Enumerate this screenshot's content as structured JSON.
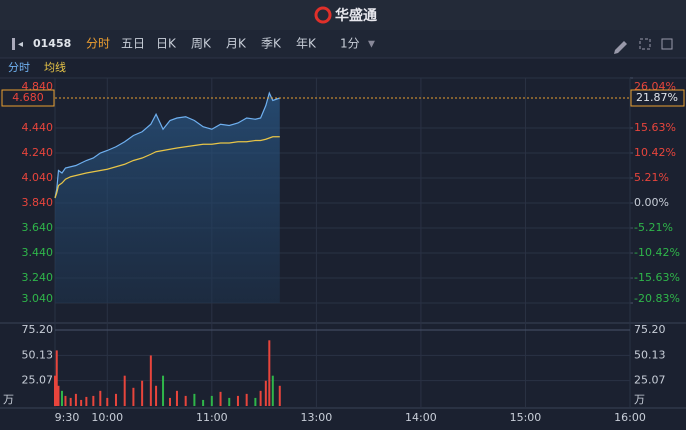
{
  "ui": {
    "brand": "华盛通",
    "symbol": "01458",
    "tabs": [
      "分时",
      "五日",
      "日K",
      "周K",
      "月K",
      "季K",
      "年K"
    ],
    "interval": "1分",
    "volume_unit": "万"
  },
  "chart_data": [
    {
      "type": "line",
      "x": [
        0,
        1,
        2,
        4,
        6,
        9,
        12,
        15,
        18,
        22,
        26,
        30,
        35,
        40,
        45,
        50,
        55,
        58,
        62,
        66,
        70,
        75,
        80,
        85,
        90,
        95,
        100,
        105,
        110,
        115,
        118,
        121,
        123,
        125,
        129
      ],
      "series": [
        {
          "name": "分时",
          "color": "#6fb0f0",
          "values": [
            3.88,
            3.95,
            4.1,
            4.08,
            4.12,
            4.13,
            4.14,
            4.16,
            4.18,
            4.2,
            4.24,
            4.26,
            4.29,
            4.33,
            4.38,
            4.41,
            4.47,
            4.55,
            4.43,
            4.5,
            4.52,
            4.53,
            4.5,
            4.45,
            4.43,
            4.47,
            4.46,
            4.48,
            4.52,
            4.51,
            4.52,
            4.62,
            4.72,
            4.66,
            4.68
          ]
        },
        {
          "name": "均线",
          "color": "#e8c547",
          "values": [
            3.88,
            3.92,
            3.98,
            4.0,
            4.03,
            4.05,
            4.06,
            4.07,
            4.08,
            4.09,
            4.1,
            4.11,
            4.13,
            4.15,
            4.18,
            4.2,
            4.23,
            4.25,
            4.26,
            4.27,
            4.28,
            4.29,
            4.3,
            4.31,
            4.31,
            4.32,
            4.32,
            4.33,
            4.33,
            4.34,
            4.34,
            4.35,
            4.36,
            4.37,
            4.37
          ]
        }
      ],
      "xlim": [
        0,
        330
      ],
      "xticks": [
        {
          "value": 0,
          "label": "9:30"
        },
        {
          "value": 30,
          "label": "10:00"
        },
        {
          "value": 90,
          "label": "11:00"
        },
        {
          "value": 150,
          "label": "13:00"
        },
        {
          "value": 210,
          "label": "14:00"
        },
        {
          "value": 270,
          "label": "15:00"
        },
        {
          "value": 330,
          "label": "16:00"
        }
      ],
      "ylim": [
        3.04,
        4.84
      ],
      "yticks": [
        {
          "value": 4.84,
          "label": "4.840"
        },
        {
          "value": 4.44,
          "label": "4.440"
        },
        {
          "value": 4.24,
          "label": "4.240"
        },
        {
          "value": 4.04,
          "label": "4.040"
        },
        {
          "value": 3.84,
          "label": "3.840"
        },
        {
          "value": 3.64,
          "label": "3.640"
        },
        {
          "value": 3.44,
          "label": "3.440"
        },
        {
          "value": 3.24,
          "label": "3.240"
        },
        {
          "value": 3.04,
          "label": "3.040"
        }
      ],
      "y2lim": [
        -20.83,
        26.04
      ],
      "y2ticks": [
        {
          "value": 26.04,
          "label": "26.04%"
        },
        {
          "value": 15.63,
          "label": "15.63%"
        },
        {
          "value": 10.42,
          "label": "10.42%"
        },
        {
          "value": 5.21,
          "label": "5.21%"
        },
        {
          "value": 0,
          "label": "0.00%"
        },
        {
          "value": -5.21,
          "label": "-5.21%"
        },
        {
          "value": -10.42,
          "label": "-10.42%"
        },
        {
          "value": -15.63,
          "label": "-15.63%"
        },
        {
          "value": -20.83,
          "label": "-20.83%"
        }
      ],
      "last_price": {
        "value": 4.68,
        "label": "4.680"
      },
      "last_change": {
        "value": 21.87,
        "label": "21.87%"
      },
      "grid": true
    },
    {
      "type": "bar",
      "x": [
        0,
        1,
        2,
        4,
        6,
        9,
        12,
        15,
        18,
        22,
        26,
        30,
        35,
        40,
        45,
        50,
        55,
        58,
        62,
        66,
        70,
        75,
        80,
        85,
        90,
        95,
        100,
        105,
        110,
        115,
        118,
        121,
        123,
        125,
        129
      ],
      "values": [
        30,
        55,
        20,
        15,
        10,
        8,
        12,
        6,
        9,
        10,
        15,
        8,
        12,
        30,
        18,
        25,
        50,
        20,
        30,
        8,
        15,
        10,
        12,
        6,
        10,
        14,
        8,
        10,
        12,
        8,
        15,
        25,
        65,
        30,
        20
      ],
      "up_color": "#e8453c",
      "down_color": "#2fb64a",
      "xlim": [
        0,
        330
      ],
      "ylim": [
        0,
        75.2
      ],
      "yticks": [
        {
          "value": 75.2,
          "label": "75.20"
        },
        {
          "value": 50.13,
          "label": "50.13"
        },
        {
          "value": 25.07,
          "label": "25.07"
        }
      ],
      "grid": true
    }
  ]
}
